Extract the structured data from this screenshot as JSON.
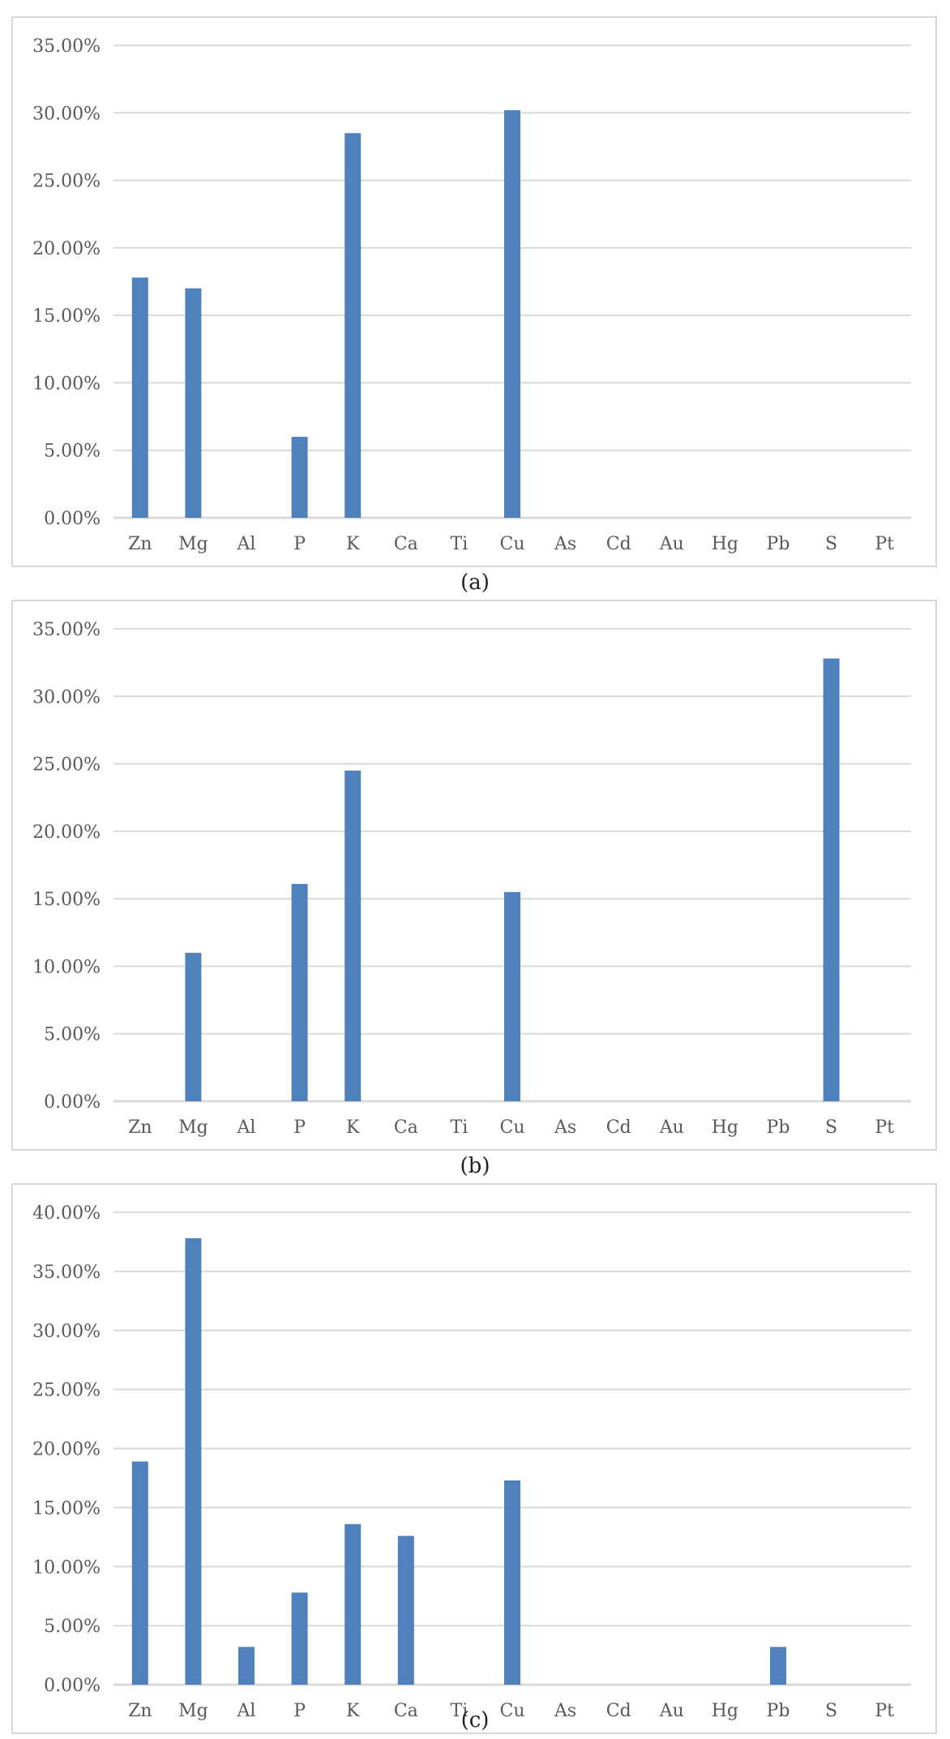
{
  "colors": {
    "bar": "#4f81bd",
    "grid": "#d9d9d9",
    "tick_text": "#595959",
    "border": "#d9d9d9"
  },
  "chart_data": [
    {
      "type": "bar",
      "caption": "(a)",
      "categories": [
        "Zn",
        "Mg",
        "Al",
        "P",
        "K",
        "Ca",
        "Ti",
        "Cu",
        "As",
        "Cd",
        "Au",
        "Hg",
        "Pb",
        "S",
        "Pt"
      ],
      "values": [
        17.8,
        17.0,
        0,
        6.0,
        28.5,
        0,
        0,
        30.2,
        0,
        0,
        0,
        0,
        0,
        0,
        0
      ],
      "ylim": [
        0,
        35
      ],
      "yticks": [
        "0.00%",
        "5.00%",
        "10.00%",
        "15.00%",
        "20.00%",
        "25.00%",
        "30.00%",
        "35.00%"
      ],
      "grid": true
    },
    {
      "type": "bar",
      "caption": "(b)",
      "categories": [
        "Zn",
        "Mg",
        "Al",
        "P",
        "K",
        "Ca",
        "Ti",
        "Cu",
        "As",
        "Cd",
        "Au",
        "Hg",
        "Pb",
        "S",
        "Pt"
      ],
      "values": [
        0,
        11.0,
        0,
        16.1,
        24.5,
        0,
        0,
        15.5,
        0,
        0,
        0,
        0,
        0,
        32.8,
        0
      ],
      "ylim": [
        0,
        35
      ],
      "yticks": [
        "0.00%",
        "5.00%",
        "10.00%",
        "15.00%",
        "20.00%",
        "25.00%",
        "30.00%",
        "35.00%"
      ],
      "grid": true
    },
    {
      "type": "bar",
      "caption": "(c)",
      "categories": [
        "Zn",
        "Mg",
        "Al",
        "P",
        "K",
        "Ca",
        "Ti",
        "Cu",
        "As",
        "Cd",
        "Au",
        "Hg",
        "Pb",
        "S",
        "Pt"
      ],
      "values": [
        18.9,
        37.8,
        3.2,
        7.8,
        13.6,
        12.6,
        0,
        17.3,
        0,
        0,
        0,
        0,
        3.2,
        0,
        0
      ],
      "ylim": [
        0,
        40
      ],
      "yticks": [
        "0.00%",
        "5.00%",
        "10.00%",
        "15.00%",
        "20.00%",
        "25.00%",
        "30.00%",
        "35.00%",
        "40.00%"
      ],
      "grid": true
    }
  ]
}
